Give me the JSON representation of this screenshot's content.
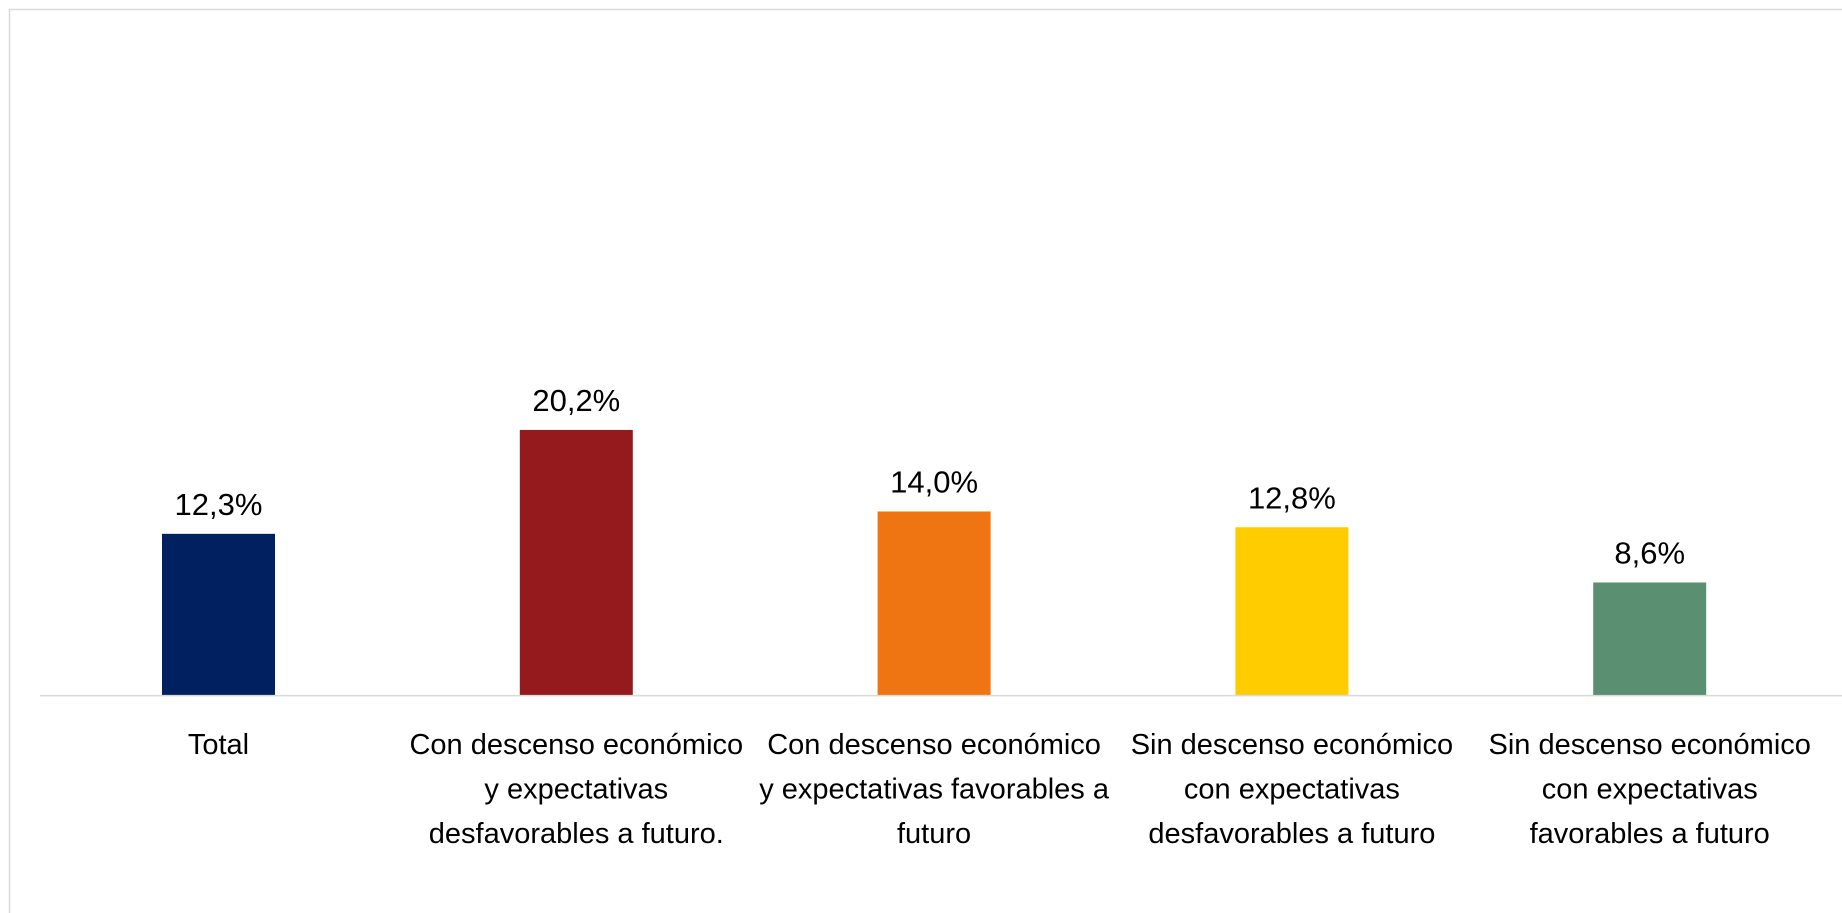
{
  "chart_data": {
    "type": "bar",
    "categories": [
      "Total",
      "Con descenso económico y expectativas desfavorables a futuro.",
      "Con descenso económico y expectativas favorables a futuro",
      "Sin descenso económico con expectativas desfavorables a futuro",
      "Sin descenso económico con expectativas favorables a futuro"
    ],
    "values": [
      12.3,
      20.2,
      14.0,
      12.8,
      8.6
    ],
    "value_labels": [
      "12,3%",
      "20,2%",
      "14,0%",
      "12,8%",
      "8,6%"
    ],
    "colors": [
      "#002060",
      "#941a1d",
      "#ef7512",
      "#ffcc00",
      "#5a8f72"
    ],
    "ylim": [
      0,
      50
    ]
  }
}
